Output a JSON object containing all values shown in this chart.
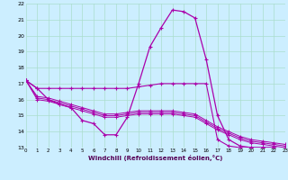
{
  "xlabel": "Windchill (Refroidissement éolien,°C)",
  "bg_color": "#cceeff",
  "grid_color": "#aaddcc",
  "line_color": "#aa00aa",
  "hours": [
    0,
    1,
    2,
    3,
    4,
    5,
    6,
    7,
    8,
    9,
    10,
    11,
    12,
    13,
    14,
    15,
    16,
    17,
    18,
    19,
    20,
    21,
    22,
    23
  ],
  "line_main": [
    17.2,
    16.7,
    16.0,
    15.7,
    15.5,
    14.7,
    14.5,
    13.8,
    13.8,
    14.9,
    17.0,
    19.3,
    20.5,
    21.6,
    21.5,
    21.1,
    18.5,
    15.0,
    13.5,
    13.1,
    13.0,
    13.0,
    13.0,
    12.9
  ],
  "line_flat": [
    17.2,
    16.7,
    16.7,
    16.7,
    16.7,
    16.7,
    16.7,
    16.7,
    16.7,
    16.7,
    16.8,
    16.9,
    17.0,
    17.0,
    17.0,
    17.0,
    17.0,
    13.5,
    13.1,
    13.0,
    13.0,
    13.0,
    13.0,
    12.9
  ],
  "line_diag1": [
    17.2,
    16.0,
    15.9,
    15.7,
    15.5,
    15.3,
    15.1,
    14.9,
    14.9,
    15.0,
    15.1,
    15.1,
    15.1,
    15.1,
    15.0,
    14.9,
    14.5,
    14.1,
    13.8,
    13.5,
    13.3,
    13.2,
    13.1,
    13.0
  ],
  "line_diag2": [
    17.2,
    16.1,
    16.0,
    15.8,
    15.6,
    15.4,
    15.2,
    15.0,
    15.0,
    15.1,
    15.2,
    15.2,
    15.2,
    15.2,
    15.1,
    15.0,
    14.6,
    14.2,
    13.9,
    13.6,
    13.4,
    13.3,
    13.2,
    13.1
  ],
  "line_diag3": [
    17.2,
    16.2,
    16.1,
    15.9,
    15.7,
    15.5,
    15.3,
    15.1,
    15.1,
    15.2,
    15.3,
    15.3,
    15.3,
    15.3,
    15.2,
    15.1,
    14.7,
    14.3,
    14.0,
    13.7,
    13.5,
    13.4,
    13.3,
    13.2
  ],
  "ylim": [
    13,
    22
  ],
  "xlim": [
    0,
    23
  ]
}
